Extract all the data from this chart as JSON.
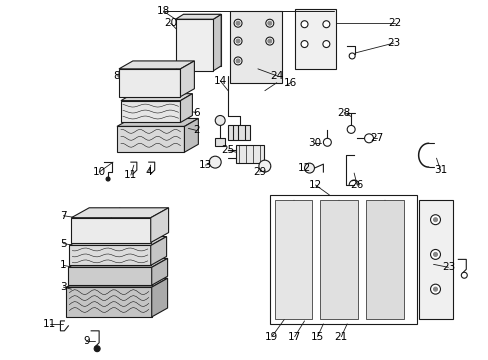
{
  "bg_color": "#ffffff",
  "line_color": "#1a1a1a",
  "label_color": "#000000",
  "fs": 7.5,
  "figsize": [
    4.89,
    3.6
  ],
  "dpi": 100
}
